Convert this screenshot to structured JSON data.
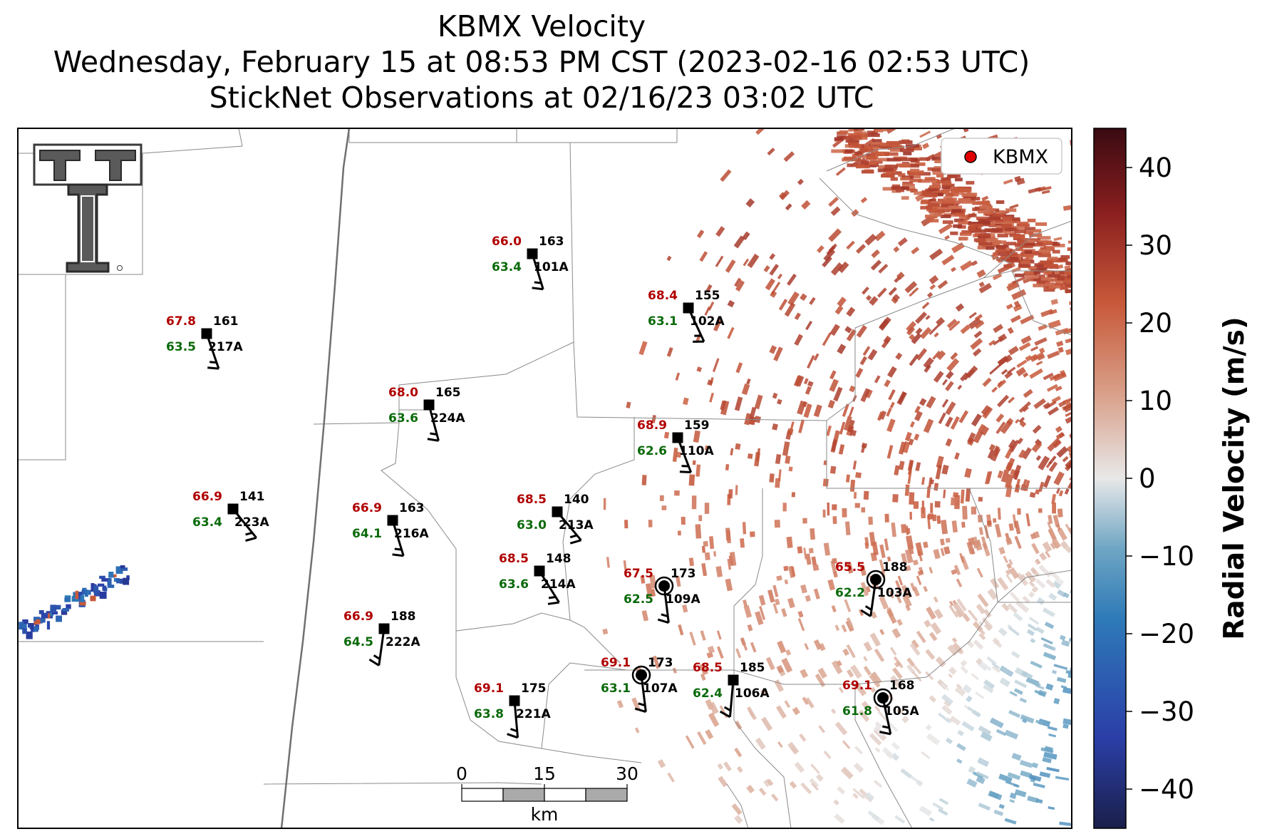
{
  "title": {
    "line1": "KBMX Velocity",
    "line2": "Wednesday, February 15 at 08:53 PM CST (2023-02-16 02:53 UTC)",
    "line3": "StickNet Observations at 02/16/23 03:02 UTC"
  },
  "legend": {
    "label": "KBMX",
    "marker_color": "#e00000"
  },
  "colorbar": {
    "label": "Radial Velocity (m/s)",
    "range": [
      -45,
      45
    ],
    "ticks": [
      "40",
      "30",
      "20",
      "10",
      "0",
      "−10",
      "−20",
      "−30",
      "−40"
    ],
    "colors": [
      "#1a1f4a",
      "#2b3fa8",
      "#2e7ab8",
      "#6fa6c4",
      "#e8e8e8",
      "#d9a08a",
      "#c8593a",
      "#8a1f1f",
      "#3a0a12"
    ]
  },
  "scalebar": {
    "labels": [
      "0",
      "15",
      "30"
    ],
    "unit": "km"
  },
  "logo": {
    "name": "texas-tech-double-t-logo"
  },
  "stations": [
    {
      "id": "101A",
      "temp": "66.0",
      "dew": "63.4",
      "dir": "163",
      "marker": "square"
    },
    {
      "id": "102A",
      "temp": "68.4",
      "dew": "63.1",
      "dir": "155",
      "marker": "square"
    },
    {
      "id": "217A",
      "temp": "67.8",
      "dew": "63.5",
      "dir": "161",
      "marker": "square"
    },
    {
      "id": "224A",
      "temp": "68.0",
      "dew": "63.6",
      "dir": "165",
      "marker": "square"
    },
    {
      "id": "110A",
      "temp": "68.9",
      "dew": "62.6",
      "dir": "159",
      "marker": "square"
    },
    {
      "id": "223A",
      "temp": "66.9",
      "dew": "63.4",
      "dir": "141",
      "marker": "square"
    },
    {
      "id": "216A",
      "temp": "66.9",
      "dew": "64.1",
      "dir": "163",
      "marker": "square"
    },
    {
      "id": "213A",
      "temp": "68.5",
      "dew": "63.0",
      "dir": "140",
      "marker": "square"
    },
    {
      "id": "214A",
      "temp": "68.5",
      "dew": "63.6",
      "dir": "148",
      "marker": "square"
    },
    {
      "id": "109A",
      "temp": "67.5",
      "dew": "62.5",
      "dir": "173",
      "marker": "circle"
    },
    {
      "id": "103A",
      "temp": "65.5",
      "dew": "62.2",
      "dir": "188",
      "marker": "circle"
    },
    {
      "id": "222A",
      "temp": "66.9",
      "dew": "64.5",
      "dir": "188",
      "marker": "square"
    },
    {
      "id": "107A",
      "temp": "69.1",
      "dew": "63.1",
      "dir": "173",
      "marker": "circle"
    },
    {
      "id": "106A",
      "temp": "68.5",
      "dew": "62.4",
      "dir": "185",
      "marker": "square"
    },
    {
      "id": "221A",
      "temp": "69.1",
      "dew": "63.8",
      "dir": "175",
      "marker": "square"
    },
    {
      "id": "105A",
      "temp": "69.1",
      "dew": "61.8",
      "dir": "168",
      "marker": "circle"
    }
  ]
}
